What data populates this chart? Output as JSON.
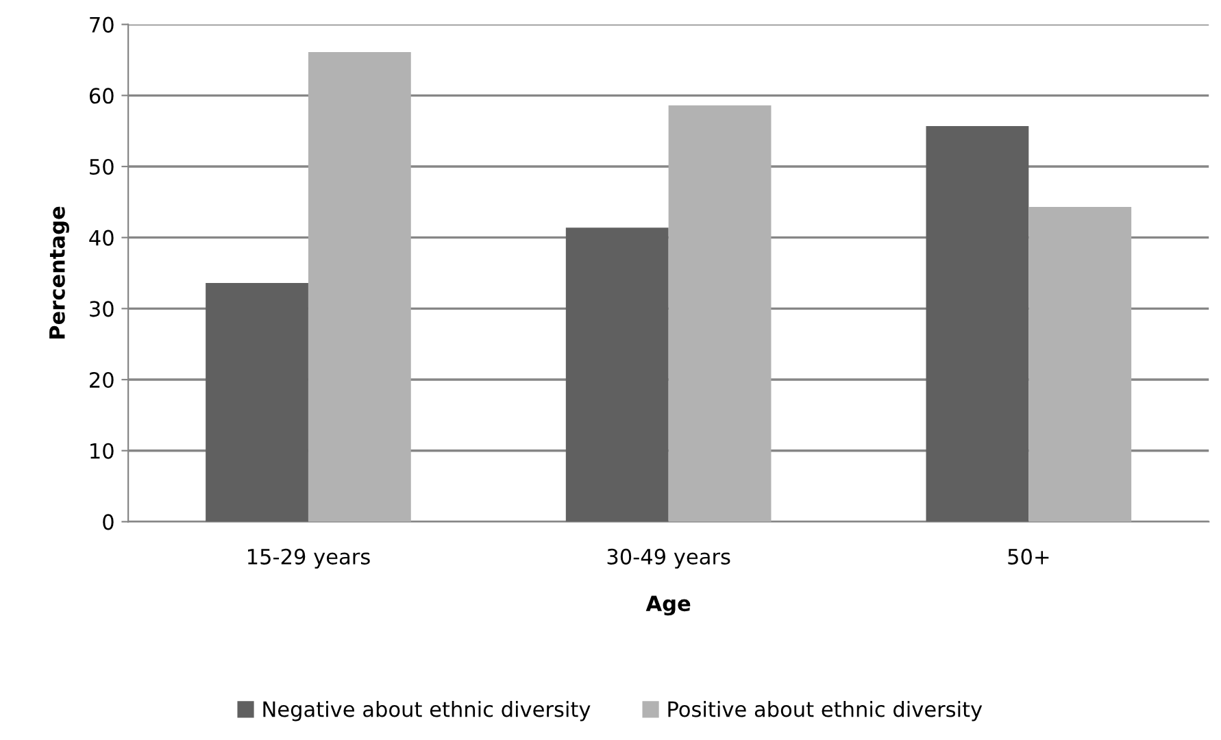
{
  "chart_data": {
    "type": "bar",
    "xlabel": "Age",
    "ylabel": "Percentage",
    "categories": [
      "15-29 years",
      "30-49 years",
      "50+"
    ],
    "series": [
      {
        "name": "Negative about ethnic diversity",
        "color": "#606060",
        "values": [
          33.6,
          41.4,
          55.7
        ]
      },
      {
        "name": "Positive about ethnic diversity",
        "color": "#b2b2b2",
        "values": [
          66.1,
          58.6,
          44.3
        ]
      }
    ],
    "ylim": [
      0,
      70
    ],
    "yticks": [
      0,
      10,
      20,
      30,
      40,
      50,
      60,
      70
    ],
    "grid": "y",
    "legend": "bottom"
  }
}
